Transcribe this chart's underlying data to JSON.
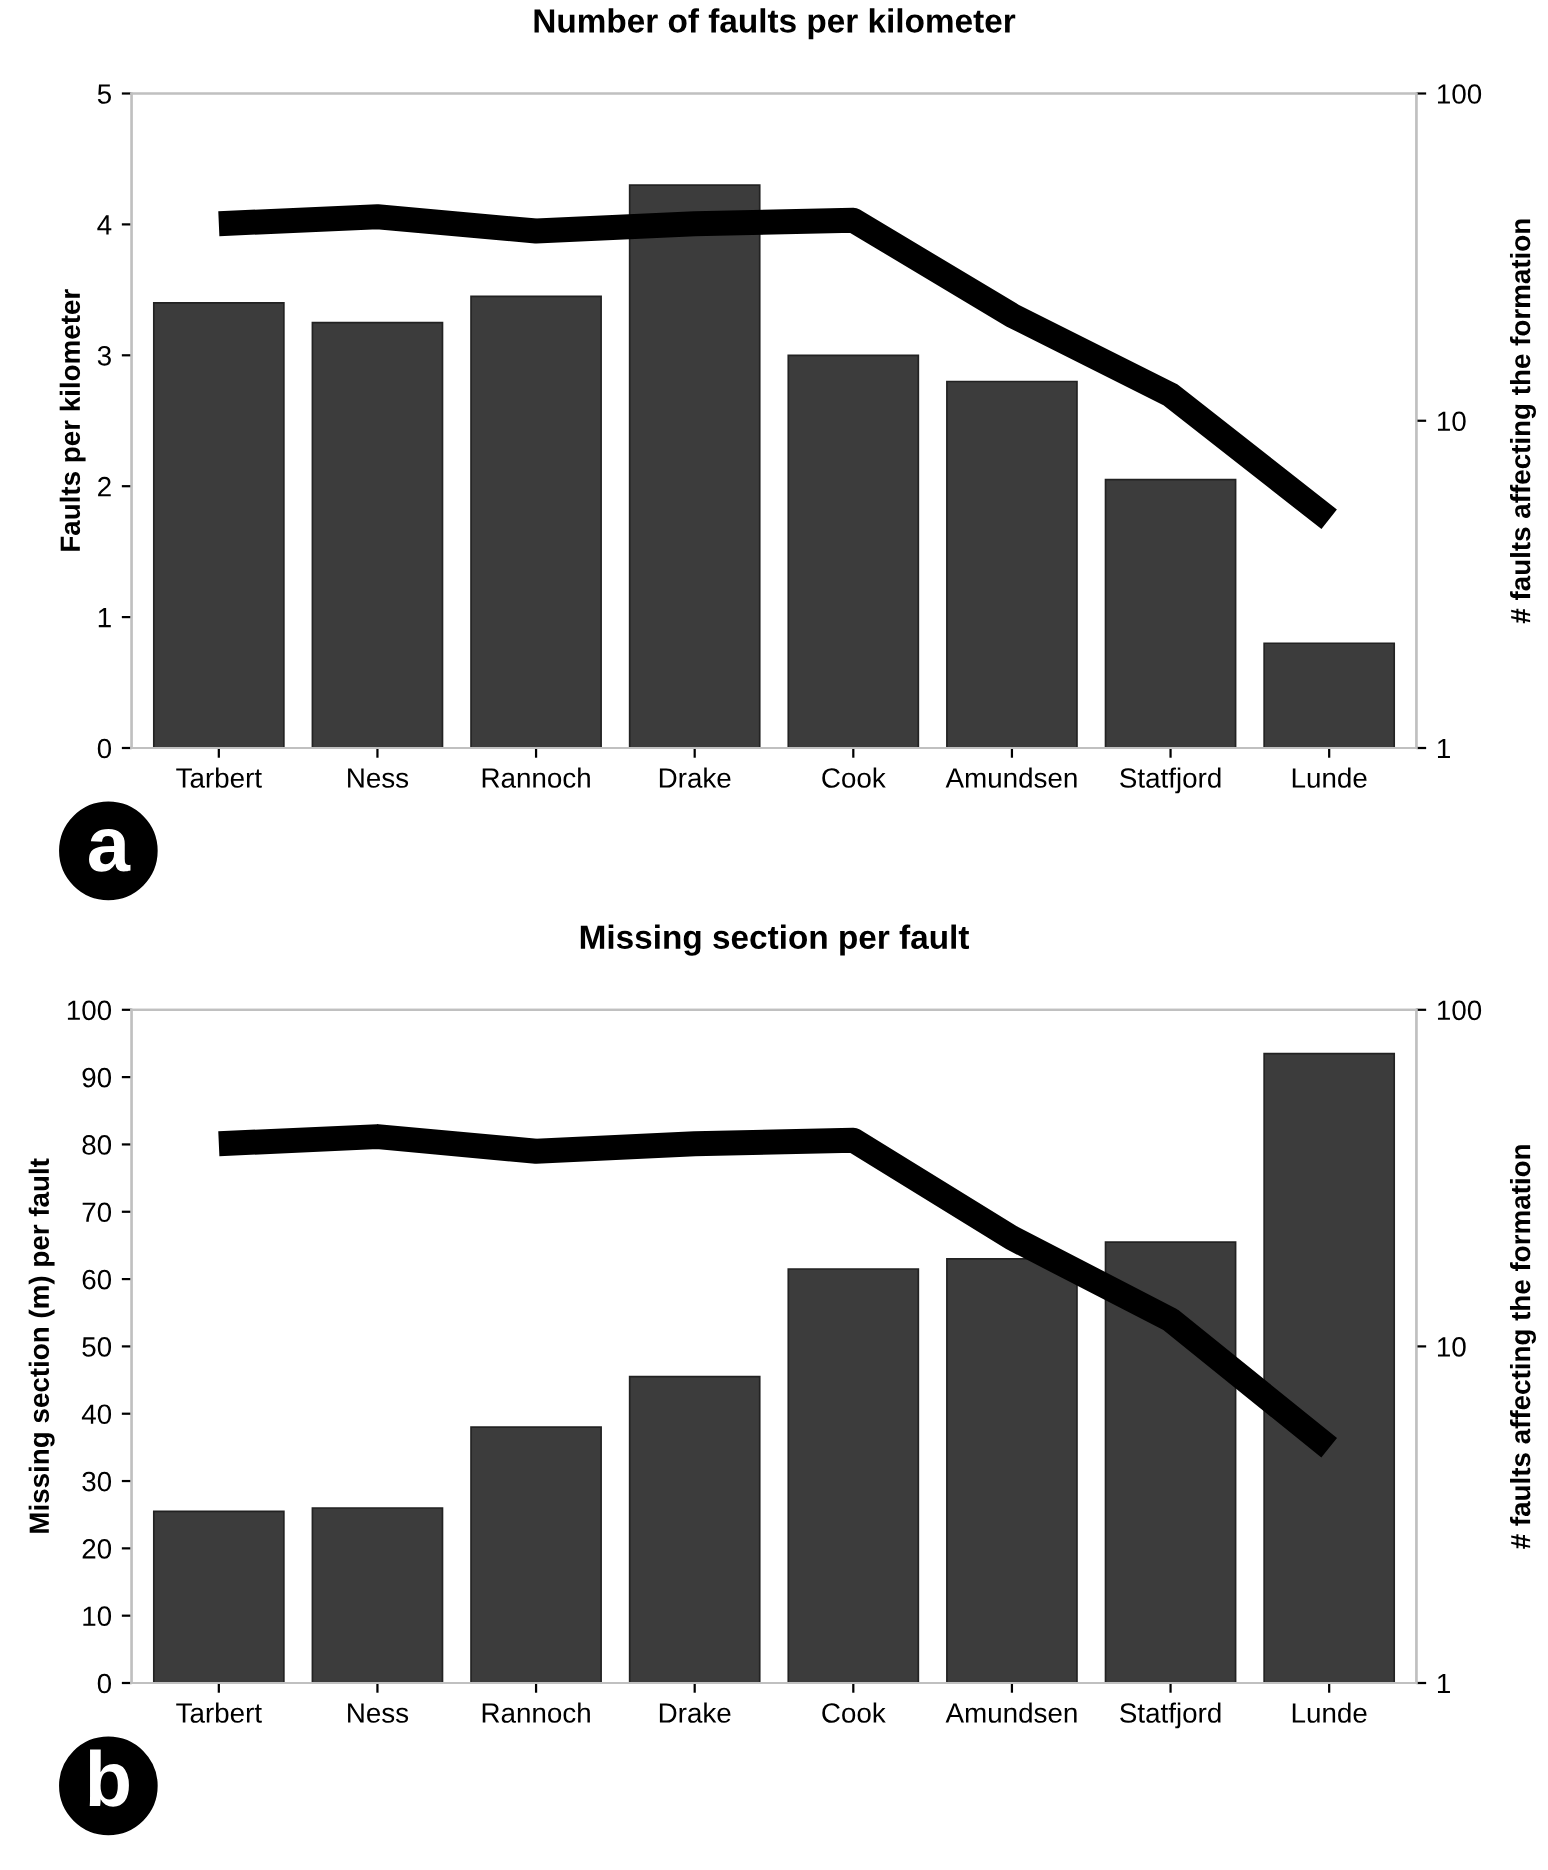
{
  "chart_data": [
    {
      "type": "bar",
      "title": "Number of faults per kilometer",
      "ylabel": "Faults per kilometer",
      "y2label": "# faults affecting the formation",
      "categories": [
        "Tarbert",
        "Ness",
        "Rannoch",
        "Drake",
        "Cook",
        "Amundsen",
        "Statfjord",
        "Lunde"
      ],
      "series": [
        {
          "color": "#3c3c3c",
          "values": [
            3.4,
            3.25,
            3.45,
            4.3,
            3.0,
            2.8,
            2.05,
            0.8
          ]
        },
        {
          "type": "line",
          "axis": "y2",
          "color": "#000000",
          "values": [
            40,
            42,
            38,
            40,
            41,
            21,
            12,
            5
          ]
        }
      ],
      "ylim": [
        0,
        5
      ],
      "yticks": [
        0,
        1,
        2,
        3,
        4,
        5
      ],
      "y2lim": [
        1,
        100
      ],
      "y2ticks": [
        1,
        10,
        100
      ],
      "log": "y2",
      "grid": false,
      "legend": false,
      "annotations": [
        "a"
      ]
    },
    {
      "type": "bar",
      "title": "Missing section per fault",
      "ylabel": "Missing section (m) per fault",
      "y2label": "# faults affecting the formation",
      "categories": [
        "Tarbert",
        "Ness",
        "Rannoch",
        "Drake",
        "Cook",
        "Amundsen",
        "Statfjord",
        "Lunde"
      ],
      "series": [
        {
          "color": "#3c3c3c",
          "values": [
            25.5,
            26,
            38,
            45.5,
            61.5,
            63,
            65.5,
            93.5
          ]
        },
        {
          "type": "line",
          "axis": "y2",
          "color": "#000000",
          "values": [
            40,
            42,
            38,
            40,
            41,
            21,
            12,
            5
          ]
        }
      ],
      "ylim": [
        0,
        100
      ],
      "yticks": [
        0,
        10,
        20,
        30,
        40,
        50,
        60,
        70,
        80,
        90,
        100
      ],
      "y2lim": [
        1,
        100
      ],
      "y2ticks": [
        1,
        10,
        100
      ],
      "log": "y2",
      "grid": false,
      "legend": false,
      "annotations": [
        "b"
      ]
    }
  ]
}
